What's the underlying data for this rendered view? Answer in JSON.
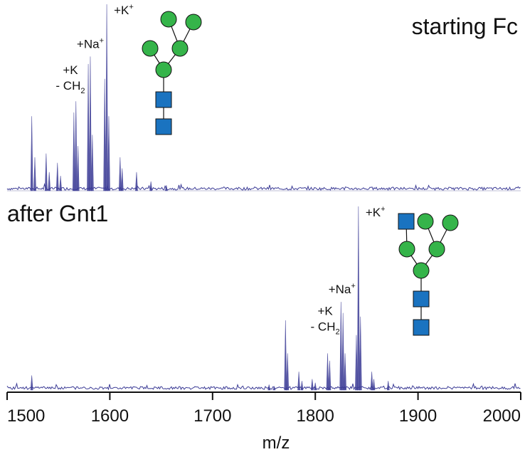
{
  "chart_data": [
    {
      "type": "line",
      "panel": "top",
      "title": "starting Fc",
      "xlabel": "m/z",
      "xlim": [
        1500,
        2000
      ],
      "ylim": [
        0,
        100
      ],
      "series": [
        {
          "name": "starting Fc spectrum",
          "color": "#3c3c96",
          "peaks": [
            {
              "mz": 1524,
              "intensity": 40
            },
            {
              "mz": 1527,
              "intensity": 18
            },
            {
              "mz": 1538,
              "intensity": 20
            },
            {
              "mz": 1541,
              "intensity": 10
            },
            {
              "mz": 1549,
              "intensity": 15
            },
            {
              "mz": 1552,
              "intensity": 8
            },
            {
              "mz": 1565,
              "intensity": 42
            },
            {
              "mz": 1567,
              "intensity": 48
            },
            {
              "mz": 1569,
              "intensity": 24
            },
            {
              "mz": 1579,
              "intensity": 68
            },
            {
              "mz": 1581,
              "intensity": 72
            },
            {
              "mz": 1583,
              "intensity": 30
            },
            {
              "mz": 1595,
              "intensity": 60
            },
            {
              "mz": 1597,
              "intensity": 100
            },
            {
              "mz": 1599,
              "intensity": 40
            },
            {
              "mz": 1610,
              "intensity": 18
            },
            {
              "mz": 1612,
              "intensity": 12
            },
            {
              "mz": 1626,
              "intensity": 10
            },
            {
              "mz": 1640,
              "intensity": 5
            },
            {
              "mz": 1655,
              "intensity": 3
            }
          ]
        }
      ],
      "annotations": [
        {
          "mz": 1563,
          "line1": "+K",
          "line2": "- CH",
          "sub": "2"
        },
        {
          "mz": 1581,
          "text": "+Na",
          "sup": "+"
        },
        {
          "mz": 1597,
          "text": "+K",
          "sup": "+"
        }
      ]
    },
    {
      "type": "line",
      "panel": "bottom",
      "title": "after Gnt1",
      "xlabel": "m/z",
      "xlim": [
        1500,
        2000
      ],
      "ylim": [
        0,
        100
      ],
      "xticks": [
        1500,
        1600,
        1700,
        1800,
        1900,
        2000
      ],
      "series": [
        {
          "name": "after Gnt1 spectrum",
          "color": "#3c3c96",
          "peaks": [
            {
              "mz": 1524,
              "intensity": 8
            },
            {
              "mz": 1755,
              "intensity": 3
            },
            {
              "mz": 1760,
              "intensity": 2
            },
            {
              "mz": 1771,
              "intensity": 38
            },
            {
              "mz": 1773,
              "intensity": 20
            },
            {
              "mz": 1784,
              "intensity": 10
            },
            {
              "mz": 1787,
              "intensity": 5
            },
            {
              "mz": 1797,
              "intensity": 6
            },
            {
              "mz": 1800,
              "intensity": 4
            },
            {
              "mz": 1812,
              "intensity": 20
            },
            {
              "mz": 1814,
              "intensity": 16
            },
            {
              "mz": 1825,
              "intensity": 48
            },
            {
              "mz": 1827,
              "intensity": 42
            },
            {
              "mz": 1829,
              "intensity": 20
            },
            {
              "mz": 1840,
              "intensity": 30
            },
            {
              "mz": 1842,
              "intensity": 100
            },
            {
              "mz": 1844,
              "intensity": 40
            },
            {
              "mz": 1855,
              "intensity": 10
            },
            {
              "mz": 1857,
              "intensity": 6
            },
            {
              "mz": 1871,
              "intensity": 5
            }
          ]
        }
      ],
      "annotations": [
        {
          "mz": 1811,
          "line1": "+K",
          "line2": "- CH",
          "sub": "2"
        },
        {
          "mz": 1826,
          "text": "+Na",
          "sup": "+"
        },
        {
          "mz": 1842,
          "text": "+K",
          "sup": "+"
        }
      ]
    }
  ],
  "glycans": {
    "top": {
      "name": "Man5 glycan",
      "mannose": 5,
      "glcnac": 2
    },
    "bottom": {
      "name": "GlcNAcMan5 glycan",
      "mannose": 5,
      "glcnac": 3
    }
  }
}
